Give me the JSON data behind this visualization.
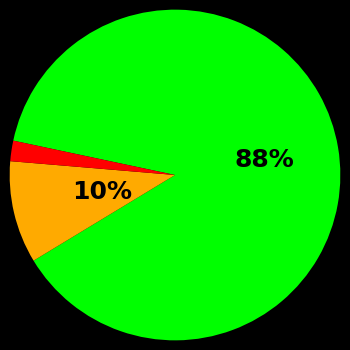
{
  "slices": [
    88,
    10,
    2
  ],
  "colors": [
    "#00ff00",
    "#ffaa00",
    "#ff0000"
  ],
  "labels": [
    "88%",
    "10%",
    ""
  ],
  "background_color": "#000000",
  "label_color": "#000000",
  "label_fontsize": 18,
  "label_radii": [
    0.55,
    0.45,
    0.5
  ],
  "startangle": 168,
  "figsize": [
    3.5,
    3.5
  ],
  "dpi": 100
}
